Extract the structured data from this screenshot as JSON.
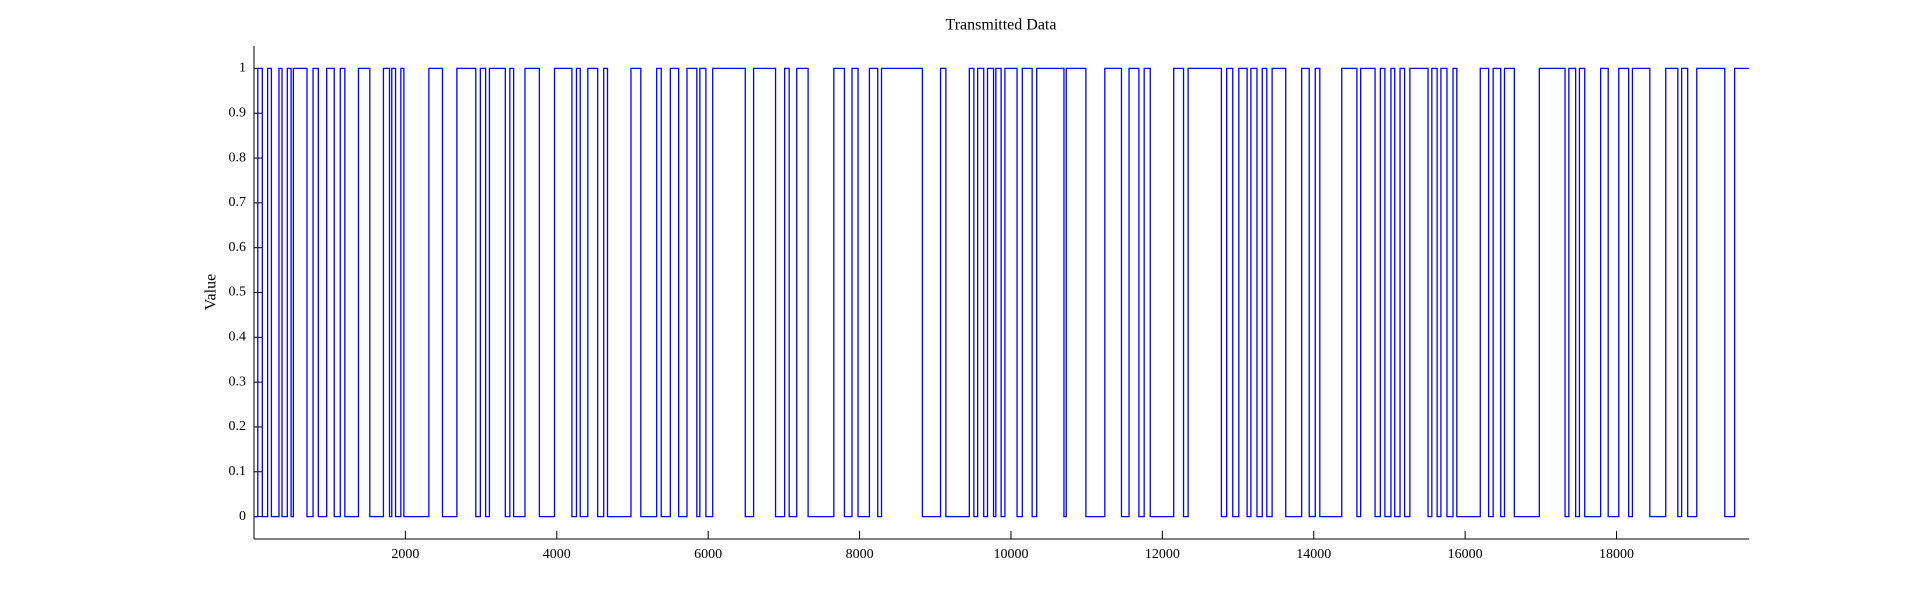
{
  "chart_data": {
    "type": "line",
    "title": "Transmitted Data",
    "y_label": "Value",
    "drawstyle": "steps-post",
    "xlim": [
      0,
      19750
    ],
    "ylim": [
      -0.05,
      1.05
    ],
    "xticks": [
      2000,
      4000,
      6000,
      8000,
      10000,
      12000,
      14000,
      16000,
      18000
    ],
    "yticks": [
      0,
      0.1,
      0.2,
      0.3,
      0.4,
      0.5,
      0.6,
      0.7,
      0.8,
      0.9,
      1
    ],
    "series": [
      {
        "color": "#0000ff",
        "x": [
          0,
          50,
          110,
          180,
          230,
          330,
          370,
          440,
          490,
          520,
          700,
          780,
          850,
          960,
          1060,
          1140,
          1200,
          1380,
          1530,
          1710,
          1790,
          1820,
          1870,
          1940,
          1980,
          2310,
          2490,
          2680,
          2930,
          2990,
          3060,
          3110,
          3320,
          3380,
          3430,
          3580,
          3770,
          3970,
          4200,
          4260,
          4310,
          4410,
          4540,
          4620,
          4670,
          4980,
          5110,
          5320,
          5380,
          5500,
          5610,
          5720,
          5850,
          5890,
          5970,
          6060,
          6490,
          6600,
          6890,
          7010,
          7070,
          7170,
          7320,
          7660,
          7800,
          7900,
          7980,
          8130,
          8240,
          8290,
          8830,
          9070,
          9140,
          9450,
          9510,
          9560,
          9640,
          9690,
          9770,
          9800,
          9870,
          9920,
          10080,
          10150,
          10280,
          10340,
          10700,
          10730,
          10990,
          11240,
          11460,
          11560,
          11690,
          11760,
          11840,
          12150,
          12280,
          12340,
          12780,
          12850,
          12930,
          13010,
          13120,
          13170,
          13250,
          13320,
          13380,
          13450,
          13630,
          13840,
          13940,
          14020,
          14080,
          14370,
          14570,
          14620,
          14810,
          14880,
          14940,
          15020,
          15070,
          15140,
          15200,
          15270,
          15510,
          15560,
          15630,
          15680,
          15760,
          15840,
          15890,
          16200,
          16310,
          16370,
          16470,
          16520,
          16650,
          16980,
          17320,
          17370,
          17460,
          17510,
          17580,
          17790,
          17890,
          18030,
          18160,
          18210,
          18440,
          18650,
          18810,
          18860,
          18940,
          19060,
          19430,
          19560,
          19750
        ],
        "values": [
          0,
          1,
          0,
          1,
          0,
          1,
          0,
          1,
          0,
          1,
          0,
          1,
          0,
          1,
          0,
          1,
          0,
          1,
          0,
          1,
          0,
          1,
          0,
          1,
          0,
          1,
          0,
          1,
          0,
          1,
          0,
          1,
          0,
          1,
          0,
          1,
          0,
          1,
          0,
          1,
          0,
          1,
          0,
          1,
          0,
          1,
          0,
          1,
          0,
          1,
          0,
          1,
          0,
          1,
          0,
          1,
          0,
          1,
          0,
          1,
          0,
          1,
          0,
          1,
          0,
          1,
          0,
          1,
          0,
          1,
          0,
          1,
          0,
          1,
          0,
          1,
          0,
          1,
          0,
          1,
          0,
          1,
          0,
          1,
          0,
          1,
          0,
          1,
          0,
          1,
          0,
          1,
          0,
          1,
          0,
          1,
          0,
          1,
          0,
          1,
          0,
          1,
          0,
          1,
          0,
          1,
          0,
          1,
          0,
          1,
          0,
          1,
          0,
          1,
          0,
          1,
          0,
          1,
          0,
          1,
          0,
          1,
          0,
          1,
          0,
          1,
          0,
          1,
          0,
          1,
          0,
          1,
          0,
          1,
          0,
          1,
          0,
          1,
          0,
          1,
          0,
          1,
          0,
          1,
          0,
          1,
          0,
          1,
          0,
          1,
          0,
          1,
          0,
          1,
          0,
          1,
          1
        ]
      }
    ]
  }
}
